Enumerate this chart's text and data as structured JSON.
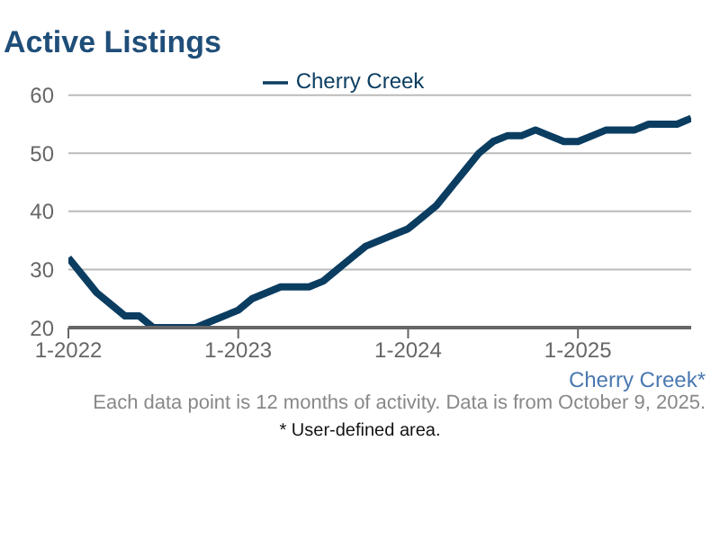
{
  "chart_data": {
    "type": "line",
    "title": "Active Listings",
    "x": [
      "2022-01",
      "2022-02",
      "2022-03",
      "2022-04",
      "2022-05",
      "2022-06",
      "2022-07",
      "2022-08",
      "2022-09",
      "2022-10",
      "2022-11",
      "2022-12",
      "2023-01",
      "2023-02",
      "2023-03",
      "2023-04",
      "2023-05",
      "2023-06",
      "2023-07",
      "2023-08",
      "2023-09",
      "2023-10",
      "2023-11",
      "2023-12",
      "2024-01",
      "2024-02",
      "2024-03",
      "2024-04",
      "2024-05",
      "2024-06",
      "2024-07",
      "2024-08",
      "2024-09",
      "2024-10",
      "2024-11",
      "2024-12",
      "2025-01",
      "2025-02",
      "2025-03",
      "2025-04",
      "2025-05",
      "2025-06",
      "2025-07",
      "2025-08",
      "2025-09"
    ],
    "series": [
      {
        "name": "Cherry Creek",
        "color": "#0b3d61",
        "values": [
          32,
          29,
          26,
          24,
          22,
          22,
          20,
          20,
          20,
          20,
          21,
          22,
          23,
          25,
          26,
          27,
          27,
          27,
          28,
          30,
          32,
          34,
          35,
          36,
          37,
          39,
          41,
          44,
          47,
          50,
          52,
          53,
          53,
          54,
          53,
          52,
          52,
          53,
          54,
          54,
          54,
          55,
          55,
          55,
          56
        ]
      }
    ],
    "xlim": [
      "2022-01",
      "2025-09"
    ],
    "xticks": [
      {
        "value": "2022-01",
        "label": "1-2022"
      },
      {
        "value": "2023-01",
        "label": "1-2023"
      },
      {
        "value": "2024-01",
        "label": "1-2024"
      },
      {
        "value": "2025-01",
        "label": "1-2025"
      }
    ],
    "ylim": [
      20,
      60
    ],
    "yticks": [
      20,
      30,
      40,
      50,
      60
    ],
    "grid": "y",
    "legend": "top",
    "marker": "none",
    "line_style": "solid",
    "annotations": [
      "Cherry Creek*",
      "Each data point is 12 months of activity. Data is from October 9, 2025.",
      "* User-defined area."
    ]
  }
}
